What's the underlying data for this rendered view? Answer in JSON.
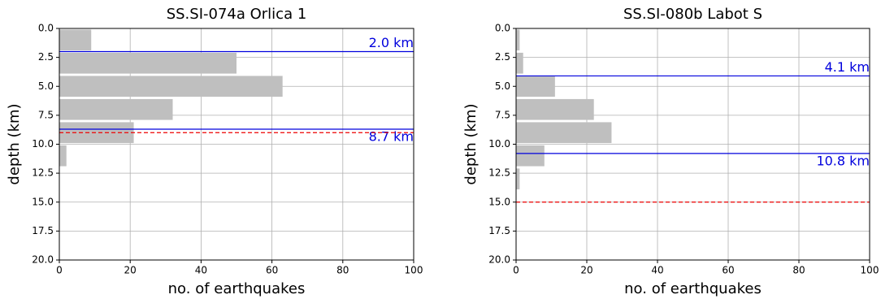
{
  "chart_data": [
    {
      "type": "histogram",
      "orientation": "horizontal",
      "title": "SS.SI-074a Orlica 1",
      "xlabel": "no. of earthquakes",
      "ylabel": "depth (km)",
      "bins": [
        0,
        2,
        4,
        6,
        8,
        10,
        12
      ],
      "values": [
        9,
        50,
        63,
        32,
        21,
        2
      ],
      "color": "#bfbfbf",
      "xlim": [
        0,
        100
      ],
      "xticks": [
        0,
        20,
        40,
        60,
        80,
        100
      ],
      "ylim": [
        0,
        20
      ],
      "invert_y": true,
      "yticks": [
        {
          "value": 0,
          "label": "0.0"
        },
        2.5,
        {
          "value": 5,
          "label": "5.0"
        },
        7.5,
        {
          "value": 10,
          "label": "10.0"
        },
        12.5,
        {
          "value": 15,
          "label": "15.0"
        },
        17.5,
        {
          "value": 20,
          "label": "20.0"
        }
      ],
      "grid": true,
      "hlines": [
        {
          "value": 2.0,
          "label": "2.0 km",
          "color": "#0000dd",
          "style": "solid",
          "label_side": "above"
        },
        {
          "value": 8.7,
          "label": "8.7 km",
          "color": "#0000dd",
          "style": "solid",
          "label_side": "below"
        },
        {
          "value": 9.0,
          "color": "#ee0000",
          "style": "dashed"
        }
      ]
    },
    {
      "type": "histogram",
      "orientation": "horizontal",
      "title": "SS.SI-080b Labot S",
      "xlabel": "no. of earthquakes",
      "ylabel": "depth (km)",
      "bins": [
        0,
        2,
        4,
        6,
        8,
        10,
        12,
        14
      ],
      "values": [
        1,
        2,
        11,
        22,
        27,
        8,
        1
      ],
      "color": "#bfbfbf",
      "xlim": [
        0,
        100
      ],
      "xticks": [
        0,
        20,
        40,
        60,
        80,
        100
      ],
      "ylim": [
        0,
        20
      ],
      "invert_y": true,
      "yticks": [
        {
          "value": 0,
          "label": "0.0"
        },
        2.5,
        {
          "value": 5,
          "label": "5.0"
        },
        7.5,
        {
          "value": 10,
          "label": "10.0"
        },
        12.5,
        {
          "value": 15,
          "label": "15.0"
        },
        17.5,
        {
          "value": 20,
          "label": "20.0"
        }
      ],
      "grid": true,
      "hlines": [
        {
          "value": 4.1,
          "label": "4.1 km",
          "color": "#0000dd",
          "style": "solid",
          "label_side": "above"
        },
        {
          "value": 10.8,
          "label": "10.8 km",
          "color": "#0000dd",
          "style": "solid",
          "label_side": "below"
        },
        {
          "value": 15.0,
          "color": "#ee0000",
          "style": "dashed"
        }
      ]
    }
  ]
}
